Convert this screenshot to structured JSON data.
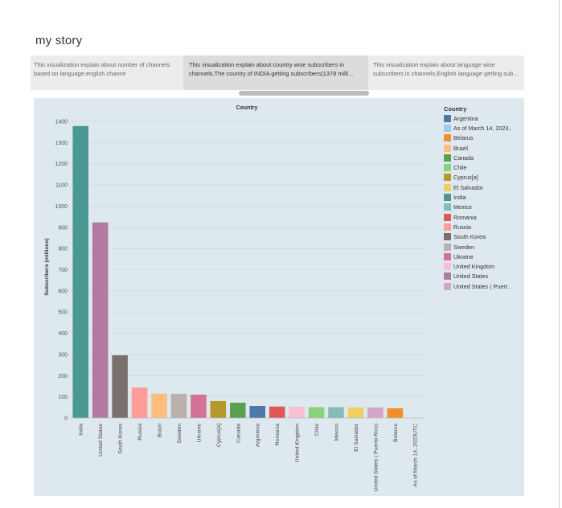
{
  "story": {
    "title": "my story",
    "points": [
      {
        "caption_line1": "This visualization explain about number of channels",
        "caption_line2": "based on language.english channe",
        "active": false
      },
      {
        "caption_line1": "This visualization explain about country wise subscribers in",
        "caption_line2": "channels.The country of  INDIA  getting subscribers(1378 milli…",
        "active": true
      },
      {
        "caption_line1": "This visualization explain about language wise",
        "caption_line2": "subscribers in channels.English language getting sub…",
        "active": false
      }
    ]
  },
  "legend": {
    "title": "Country",
    "items": [
      {
        "label": "Argentina",
        "color": "#4e79a7"
      },
      {
        "label": "As of March 14, 2023..",
        "color": "#a0cbe8"
      },
      {
        "label": "Belarus",
        "color": "#f28e2b"
      },
      {
        "label": "Brazil",
        "color": "#ffbe7d"
      },
      {
        "label": "Canada",
        "color": "#59a14f"
      },
      {
        "label": "Chile",
        "color": "#8cd17d"
      },
      {
        "label": "Cyprus[a]",
        "color": "#b6992d"
      },
      {
        "label": "El Salvador",
        "color": "#f1ce63"
      },
      {
        "label": "India",
        "color": "#499894"
      },
      {
        "label": "Mexico",
        "color": "#86bcb6"
      },
      {
        "label": "Romania",
        "color": "#e15759"
      },
      {
        "label": "Russia",
        "color": "#ff9d9a"
      },
      {
        "label": "South Korea",
        "color": "#79706e"
      },
      {
        "label": "Sweden",
        "color": "#bab0ac"
      },
      {
        "label": "Ukraine",
        "color": "#d37295"
      },
      {
        "label": "United Kingdom",
        "color": "#fabfd2"
      },
      {
        "label": "United States",
        "color": "#b07aa1"
      },
      {
        "label": "United States ( Puert..",
        "color": "#d4a6c8"
      }
    ]
  },
  "chart_data": {
    "type": "bar",
    "title": "Country",
    "xlabel": "",
    "ylabel": "Subscribers (millions)",
    "ylim": [
      0,
      1400
    ],
    "yticks": [
      0,
      100,
      200,
      300,
      400,
      500,
      600,
      700,
      800,
      900,
      1000,
      1100,
      1200,
      1300,
      1400
    ],
    "grid": true,
    "legend_position": "right",
    "categories": [
      "India",
      "United States",
      "South Korea",
      "Russia",
      "Brazil",
      "Sweden",
      "Ukraine",
      "Cyprus[a]",
      "Canada",
      "Argentina",
      "Romania",
      "United Kingdom",
      "Chile",
      "Mexico",
      "El Salvador",
      "United States ( Puerto Rico)",
      "Belarus",
      "As of March 14, 2023UTC"
    ],
    "values": [
      1378,
      923,
      296,
      144,
      115,
      114,
      110,
      80,
      72,
      57,
      54,
      53,
      51,
      51,
      50,
      50,
      46,
      0
    ],
    "colors": [
      "#499894",
      "#b07aa1",
      "#79706e",
      "#ff9d9a",
      "#ffbe7d",
      "#bab0ac",
      "#d37295",
      "#b6992d",
      "#59a14f",
      "#4e79a7",
      "#e15759",
      "#fabfd2",
      "#8cd17d",
      "#86bcb6",
      "#f1ce63",
      "#d4a6c8",
      "#f28e2b",
      "#a0cbe8"
    ]
  }
}
